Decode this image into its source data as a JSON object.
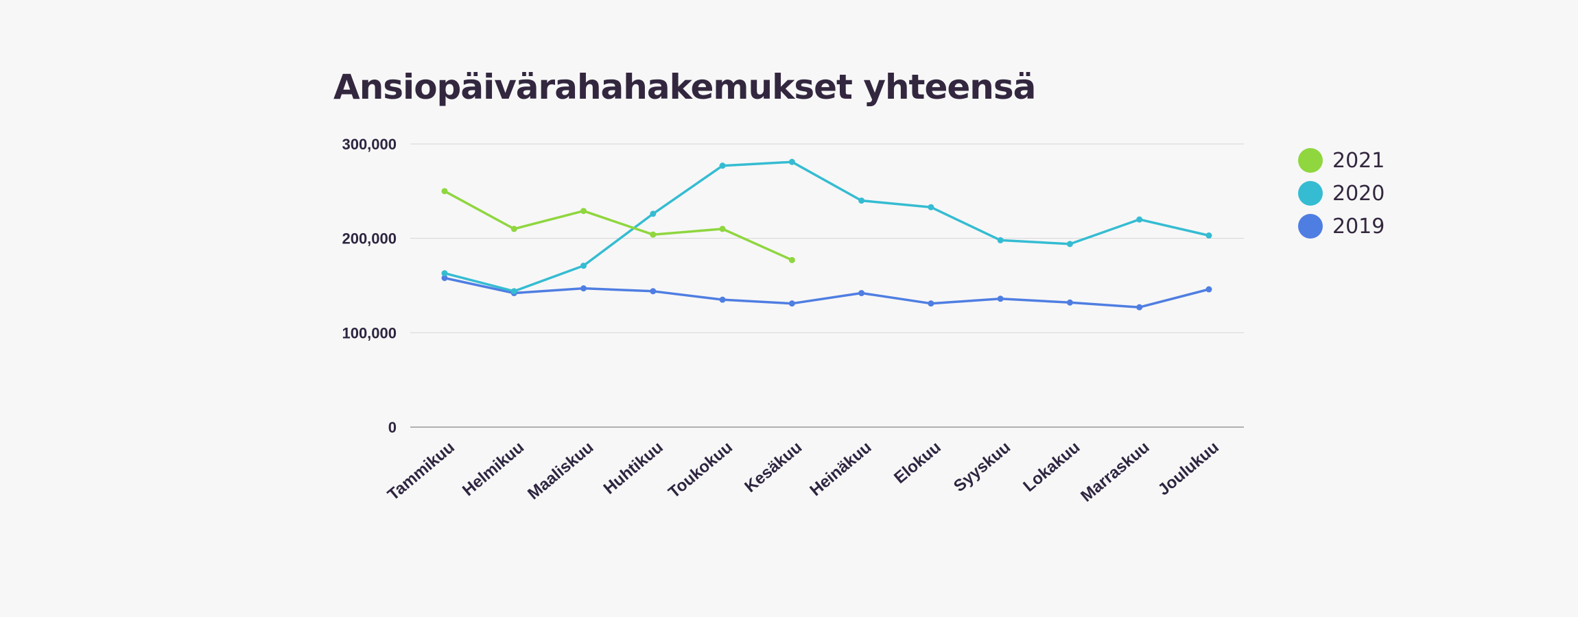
{
  "chart_data": {
    "type": "line",
    "title": "Ansiopäivärahahakemukset yhteensä",
    "xlabel": "",
    "ylabel": "",
    "ylim": [
      0,
      300000
    ],
    "yticks": [
      0,
      100000,
      200000,
      300000
    ],
    "ytick_labels": [
      "0",
      "100,000",
      "200,000",
      "300,000"
    ],
    "grid": true,
    "legend_position": "right",
    "categories": [
      "Tammikuu",
      "Helmikuu",
      "Maaliskuu",
      "Huhtikuu",
      "Toukokuu",
      "Kesäkuu",
      "Heinäkuu",
      "Elokuu",
      "Syyskuu",
      "Lokakuu",
      "Marraskuu",
      "Joulukuu"
    ],
    "series": [
      {
        "name": "2021",
        "color": "#8fd63f",
        "values": [
          250000,
          210000,
          229000,
          204000,
          210000,
          177000,
          null,
          null,
          null,
          null,
          null,
          null
        ]
      },
      {
        "name": "2020",
        "color": "#35bcd2",
        "values": [
          163000,
          144000,
          171000,
          226000,
          277000,
          281000,
          240000,
          233000,
          198000,
          194000,
          220000,
          203000
        ]
      },
      {
        "name": "2019",
        "color": "#4f7ee2",
        "values": [
          158000,
          142000,
          147000,
          144000,
          135000,
          131000,
          142000,
          131000,
          136000,
          132000,
          127000,
          146000
        ]
      }
    ]
  }
}
